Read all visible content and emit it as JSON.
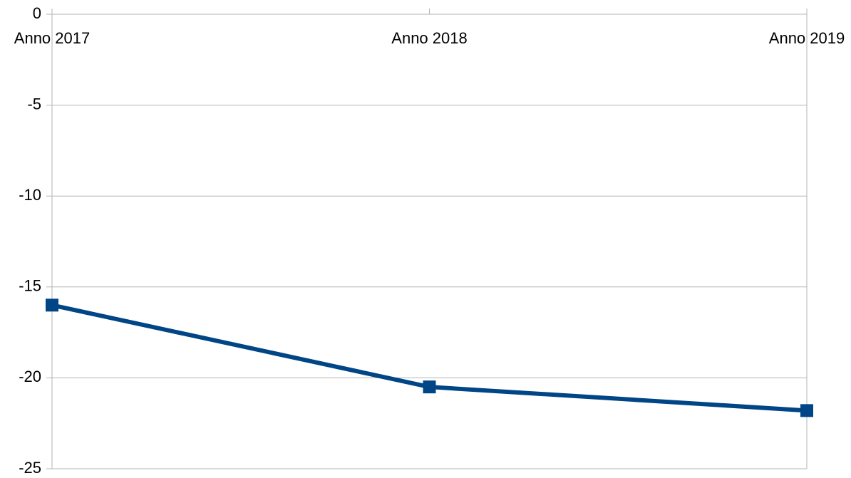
{
  "chart_data": {
    "type": "line",
    "categories": [
      "Anno 2017",
      "Anno 2018",
      "Anno 2019"
    ],
    "series": [
      {
        "name": null,
        "color": "#004586",
        "values": [
          -16,
          -20.5,
          -21.8
        ]
      }
    ],
    "ylim": [
      -25,
      0
    ],
    "yticks": [
      0,
      -5,
      -10,
      -15,
      -20,
      -25
    ],
    "grid": true
  }
}
